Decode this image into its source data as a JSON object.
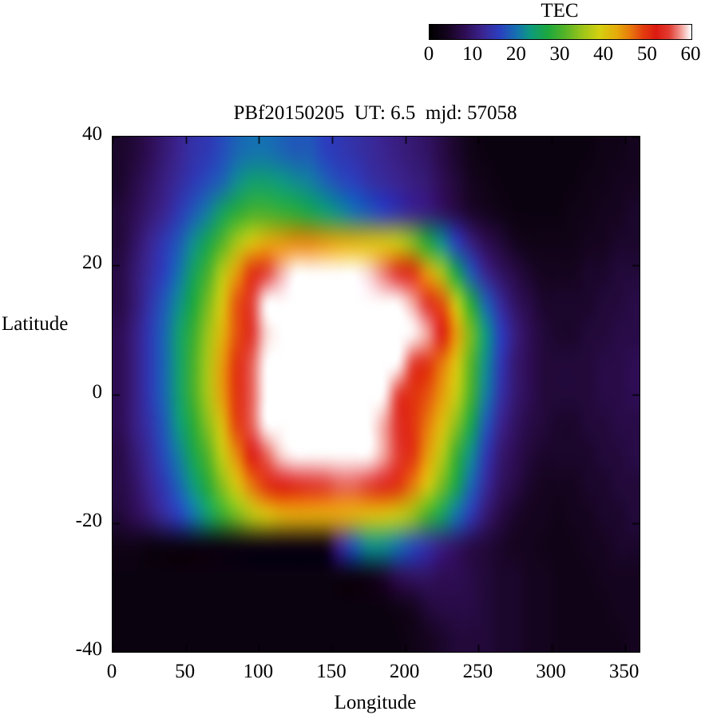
{
  "figure": {
    "title": "PBf20150205  UT: 6.5  mjd: 57058"
  },
  "chart_data": {
    "type": "heatmap",
    "title": "PBf20150205  UT: 6.5  mjd: 57058",
    "xlabel": "Longitude",
    "ylabel": "Latitude",
    "xlim": [
      0,
      360
    ],
    "ylim": [
      -40,
      40
    ],
    "x_ticks": [
      0,
      50,
      100,
      150,
      200,
      250,
      300,
      350
    ],
    "y_ticks": [
      40,
      20,
      0,
      -20,
      -40
    ],
    "grid": false,
    "colorbar": {
      "label": "TEC",
      "min": 0,
      "max": 60,
      "ticks": [
        0,
        10,
        20,
        30,
        40,
        50,
        60
      ],
      "position": "top-right-horizontal"
    },
    "colormap_stops": [
      [
        0,
        "#000000"
      ],
      [
        4,
        "#15041f"
      ],
      [
        8,
        "#2e0d54"
      ],
      [
        12,
        "#3b2490"
      ],
      [
        16,
        "#2b3fbf"
      ],
      [
        20,
        "#1572b0"
      ],
      [
        23,
        "#0e9a80"
      ],
      [
        27,
        "#1ca83f"
      ],
      [
        31,
        "#55b428"
      ],
      [
        35,
        "#9cc41a"
      ],
      [
        39,
        "#d6d010"
      ],
      [
        43,
        "#e6ab0b"
      ],
      [
        46,
        "#e87a0d"
      ],
      [
        49,
        "#e33d0f"
      ],
      [
        52,
        "#dd1a12"
      ],
      [
        55,
        "#e23d33"
      ],
      [
        57,
        "#ee8078"
      ],
      [
        60,
        "#ffffff"
      ]
    ],
    "x_longitude": [
      0,
      10,
      20,
      30,
      40,
      50,
      60,
      70,
      80,
      90,
      100,
      110,
      120,
      130,
      140,
      150,
      160,
      170,
      180,
      190,
      200,
      210,
      220,
      230,
      240,
      250,
      260,
      270,
      280,
      290,
      300,
      310,
      320,
      330,
      340,
      350
    ],
    "y_latitude": [
      40,
      35,
      30,
      25,
      20,
      15,
      10,
      5,
      0,
      -5,
      -10,
      -15,
      -20,
      -25,
      -30,
      -35,
      -40
    ],
    "values_tec": [
      [
        5,
        6,
        8,
        10,
        12,
        14,
        15,
        17,
        19,
        20,
        20,
        19,
        18,
        18,
        16,
        15,
        14,
        13,
        12,
        11,
        10,
        9,
        7,
        5,
        3,
        2,
        2,
        2,
        2,
        2,
        2,
        2,
        2,
        3,
        3,
        4
      ],
      [
        5,
        7,
        9,
        11,
        13,
        15,
        17,
        19,
        22,
        24,
        24,
        23,
        22,
        21,
        19,
        17,
        16,
        14,
        13,
        12,
        11,
        10,
        8,
        6,
        4,
        3,
        2,
        2,
        2,
        2,
        2,
        2,
        3,
        3,
        4,
        4
      ],
      [
        6,
        8,
        10,
        12,
        15,
        18,
        21,
        25,
        28,
        30,
        30,
        29,
        28,
        26,
        24,
        22,
        20,
        18,
        16,
        14,
        12,
        11,
        9,
        7,
        5,
        4,
        3,
        2,
        2,
        2,
        2,
        3,
        3,
        4,
        4,
        5
      ],
      [
        6,
        9,
        12,
        15,
        18,
        22,
        26,
        31,
        36,
        40,
        43,
        44,
        45,
        45,
        44,
        43,
        42,
        41,
        40,
        38,
        34,
        28,
        22,
        16,
        11,
        8,
        6,
        4,
        3,
        3,
        3,
        3,
        4,
        4,
        5,
        5
      ],
      [
        7,
        10,
        13,
        16,
        20,
        25,
        30,
        37,
        44,
        50,
        55,
        58,
        60,
        61,
        61,
        61,
        60,
        59,
        57,
        54,
        50,
        44,
        36,
        26,
        18,
        12,
        9,
        7,
        5,
        4,
        4,
        4,
        5,
        5,
        6,
        6
      ],
      [
        7,
        10,
        14,
        18,
        22,
        27,
        33,
        40,
        48,
        55,
        60,
        63,
        65,
        66,
        66,
        66,
        65,
        64,
        63,
        61,
        58,
        54,
        48,
        38,
        28,
        19,
        13,
        9,
        7,
        5,
        5,
        5,
        5,
        6,
        6,
        7
      ],
      [
        8,
        11,
        15,
        19,
        24,
        29,
        35,
        42,
        48,
        54,
        59,
        63,
        66,
        68,
        68,
        68,
        67,
        66,
        65,
        64,
        62,
        58,
        52,
        44,
        33,
        23,
        16,
        11,
        8,
        6,
        5,
        5,
        6,
        6,
        7,
        7
      ],
      [
        8,
        11,
        15,
        19,
        24,
        30,
        36,
        44,
        50,
        56,
        62,
        67,
        68,
        68,
        68,
        67,
        66,
        65,
        63,
        60,
        55,
        50,
        46,
        40,
        31,
        22,
        15,
        10,
        8,
        6,
        6,
        6,
        6,
        7,
        7,
        8
      ],
      [
        8,
        11,
        15,
        19,
        24,
        30,
        36,
        44,
        50,
        56,
        61,
        66,
        67,
        67,
        67,
        66,
        65,
        63,
        60,
        55,
        50,
        48,
        44,
        38,
        30,
        21,
        14,
        10,
        8,
        6,
        6,
        6,
        6,
        7,
        7,
        8
      ],
      [
        8,
        11,
        14,
        18,
        23,
        28,
        34,
        41,
        49,
        56,
        61,
        64,
        65,
        65,
        65,
        64,
        63,
        61,
        58,
        54,
        50,
        46,
        41,
        34,
        26,
        18,
        12,
        9,
        7,
        6,
        5,
        5,
        6,
        6,
        7,
        7
      ],
      [
        7,
        10,
        13,
        17,
        21,
        26,
        31,
        38,
        45,
        52,
        56,
        59,
        61,
        62,
        62,
        62,
        61,
        60,
        58,
        55,
        50,
        44,
        37,
        29,
        22,
        15,
        10,
        8,
        6,
        5,
        5,
        5,
        5,
        6,
        6,
        7
      ],
      [
        7,
        9,
        12,
        15,
        19,
        23,
        28,
        34,
        40,
        46,
        50,
        52,
        53,
        54,
        55,
        56,
        56,
        55,
        53,
        50,
        46,
        40,
        33,
        26,
        19,
        13,
        9,
        7,
        5,
        4,
        4,
        4,
        5,
        5,
        6,
        6
      ],
      [
        6,
        8,
        10,
        13,
        16,
        20,
        24,
        29,
        33,
        37,
        40,
        42,
        43,
        43,
        43,
        43,
        42,
        41,
        40,
        38,
        35,
        30,
        25,
        20,
        15,
        10,
        7,
        5,
        4,
        4,
        3,
        4,
        4,
        5,
        5,
        6
      ],
      [
        3,
        3,
        2,
        2,
        2,
        2,
        2,
        2,
        2,
        2,
        2,
        2,
        2,
        2,
        3,
        12,
        18,
        22,
        22,
        20,
        17,
        14,
        11,
        9,
        7,
        6,
        5,
        4,
        4,
        3,
        3,
        3,
        4,
        4,
        5,
        5
      ],
      [
        2,
        2,
        2,
        2,
        2,
        2,
        2,
        2,
        2,
        2,
        2,
        2,
        2,
        2,
        2,
        2,
        2,
        3,
        5,
        8,
        9,
        9,
        8,
        8,
        7,
        6,
        5,
        5,
        4,
        4,
        3,
        3,
        3,
        4,
        4,
        4
      ],
      [
        2,
        2,
        2,
        2,
        2,
        2,
        2,
        2,
        2,
        2,
        2,
        2,
        2,
        2,
        2,
        2,
        2,
        2,
        2,
        3,
        4,
        6,
        7,
        7,
        7,
        6,
        5,
        5,
        4,
        4,
        3,
        3,
        3,
        3,
        4,
        4
      ],
      [
        2,
        2,
        2,
        2,
        2,
        2,
        2,
        2,
        2,
        2,
        2,
        2,
        2,
        2,
        2,
        2,
        2,
        2,
        2,
        2,
        3,
        4,
        5,
        6,
        6,
        6,
        5,
        5,
        4,
        4,
        3,
        3,
        3,
        3,
        3,
        4
      ]
    ]
  }
}
